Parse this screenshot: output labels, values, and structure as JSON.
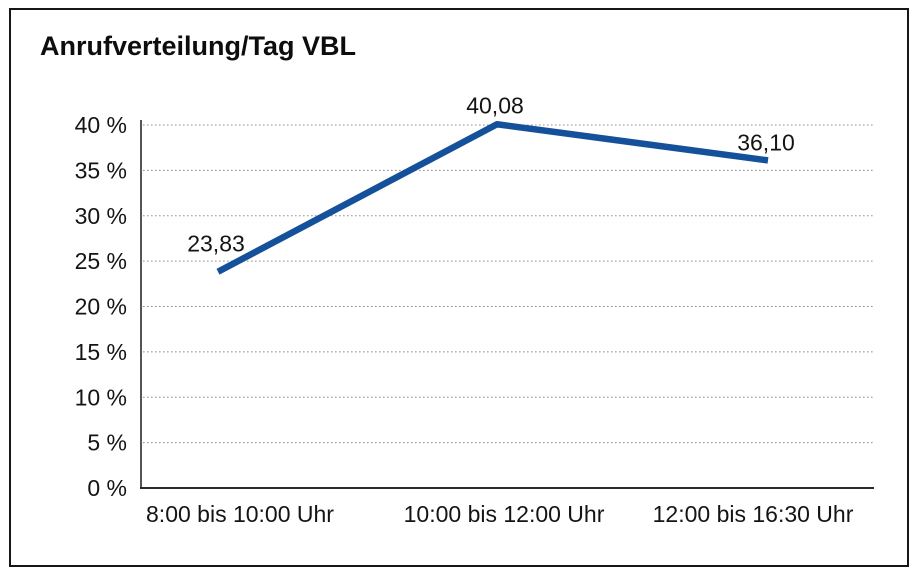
{
  "title": "Anrufverteilung/Tag VBL",
  "chart_data": {
    "type": "line",
    "title": "Anrufverteilung/Tag VBL",
    "categories": [
      "8:00 bis 10:00 Uhr",
      "10:00 bis 12:00 Uhr",
      "12:00 bis 16:30 Uhr"
    ],
    "values": [
      23.83,
      40.08,
      36.1
    ],
    "value_labels": [
      "23,83",
      "40,08",
      "36,10"
    ],
    "ytick_values": [
      0,
      5,
      10,
      15,
      20,
      25,
      30,
      35,
      40
    ],
    "ytick_labels": [
      "0 %",
      "5 %",
      "10 %",
      "15 %",
      "20 %",
      "25 %",
      "30 %",
      "35 %",
      "40 %"
    ],
    "ylim": [
      0,
      40
    ],
    "ytick_step": 5,
    "xlabel": "",
    "ylabel": "",
    "grid": "horizontal-dotted",
    "legend": "none",
    "line_color": "#15509b",
    "gridline_color": "#8d8d8d",
    "axis_color": "#2a2a2a",
    "text_color": "#141414"
  }
}
